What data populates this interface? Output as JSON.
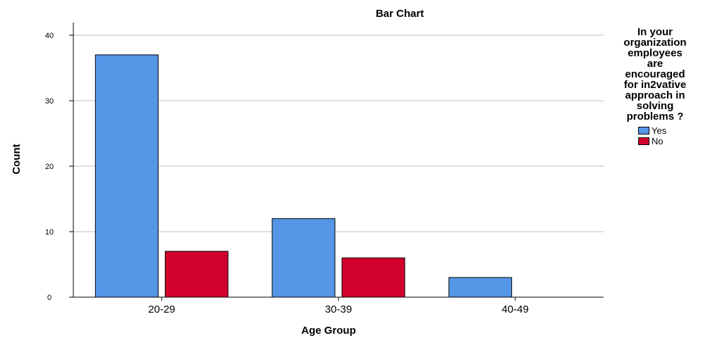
{
  "chart_data": {
    "type": "bar",
    "title": "Bar Chart",
    "xlabel": "Age Group",
    "ylabel": "Count",
    "categories": [
      "20-29",
      "30-39",
      "40-49"
    ],
    "series": [
      {
        "name": "Yes",
        "values": [
          37,
          12,
          3
        ],
        "color": "#5596E6"
      },
      {
        "name": "No",
        "values": [
          7,
          6,
          0
        ],
        "color": "#D2002D"
      }
    ],
    "ylim": [
      0,
      40
    ],
    "yticks": [
      0,
      10,
      20,
      30,
      40
    ],
    "grid": true,
    "legend": {
      "title_lines": [
        "In your",
        "organization",
        "employees",
        "are",
        "encouraged",
        "for in2vative",
        "approach in",
        "solving",
        "problems ?"
      ],
      "position": "right"
    }
  }
}
